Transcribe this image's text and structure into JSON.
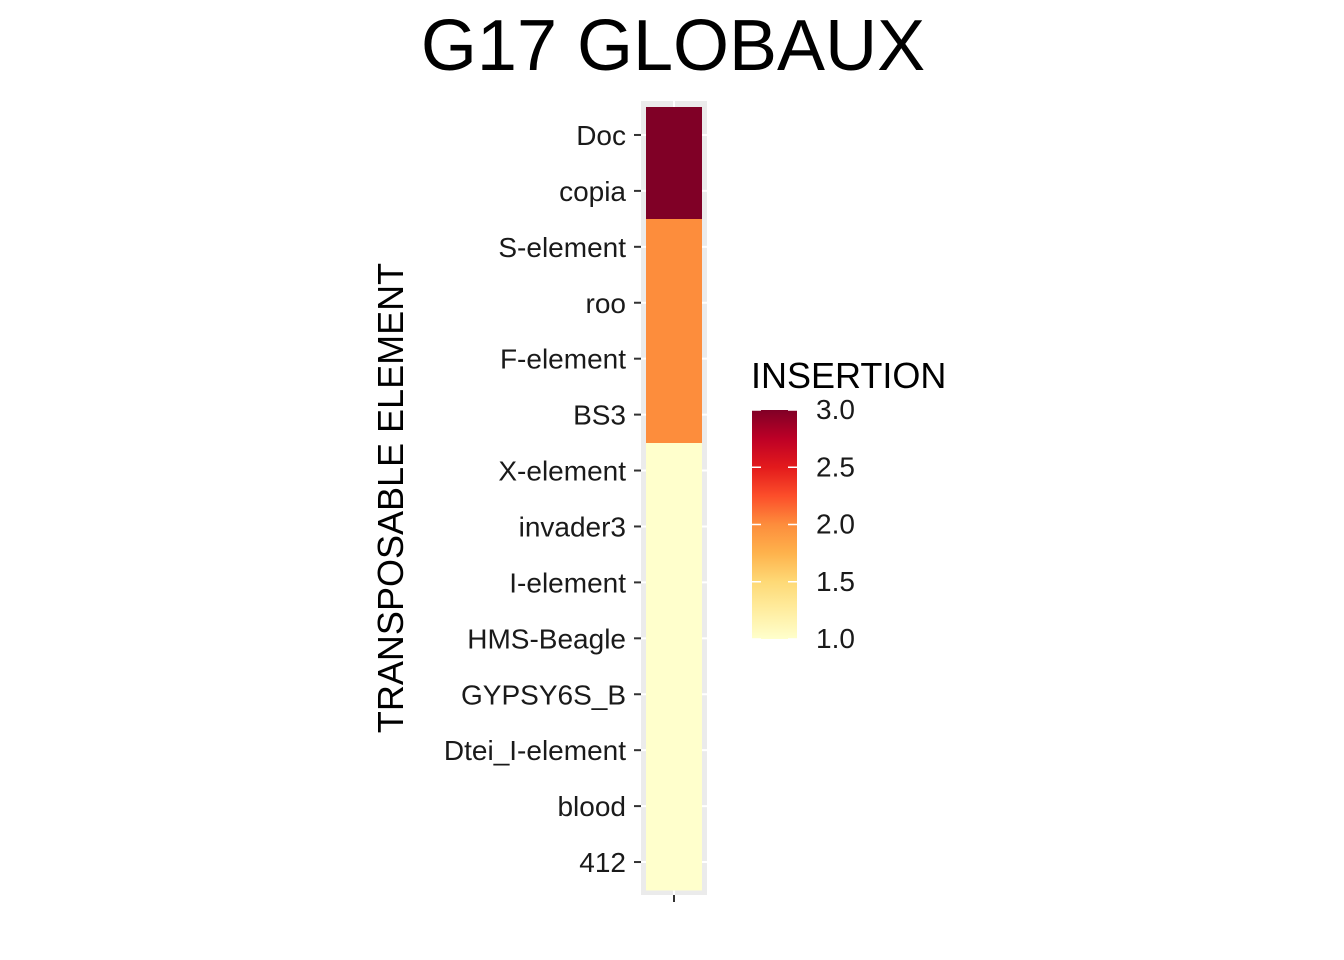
{
  "chart_data": {
    "type": "heatmap",
    "title": "G17 GLOBAUX",
    "xlabel": "",
    "ylabel": "TRANSPOSABLE ELEMENT",
    "x_categories": [
      ""
    ],
    "y_categories": [
      "Doc",
      "copia",
      "S-element",
      "roo",
      "F-element",
      "BS3",
      "X-element",
      "invader3",
      "I-element",
      "HMS-Beagle",
      "GYPSY6S_B",
      "Dtei_I-element",
      "blood",
      "412"
    ],
    "values": [
      3,
      3,
      2,
      2,
      2,
      2,
      1,
      1,
      1,
      1,
      1,
      1,
      1,
      1
    ],
    "legend": {
      "title": "INSERTION",
      "ticks": [
        "1.0",
        "1.5",
        "2.0",
        "2.5",
        "3.0"
      ],
      "range": [
        1,
        3
      ],
      "position": "right"
    },
    "colorscale": [
      "#ffffcc",
      "#ffeda0",
      "#fed976",
      "#feb24c",
      "#fd8d3c",
      "#fc4e2a",
      "#e31a1c",
      "#bd0026",
      "#800026"
    ],
    "panel_background": "#ebebeb",
    "grid": true
  }
}
